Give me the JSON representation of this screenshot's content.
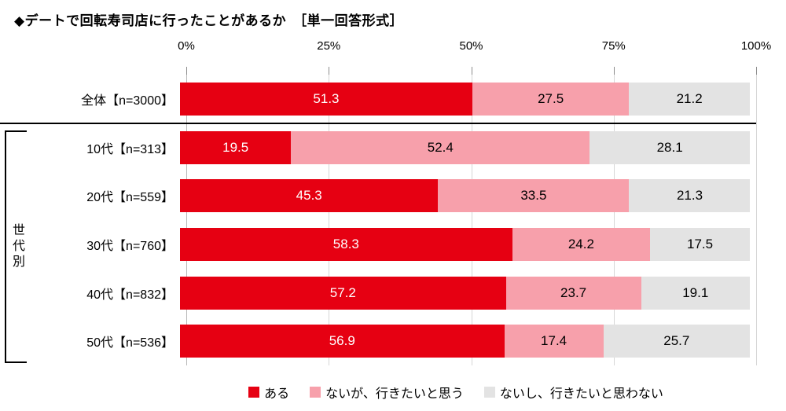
{
  "title": "◆デートで回転寿司店に行ったことがあるか　［単一回答形式］",
  "axis": {
    "ticks": [
      "0%",
      "25%",
      "50%",
      "75%",
      "100%"
    ]
  },
  "group_label": "世代別",
  "chart_data": {
    "type": "bar",
    "stacked": true,
    "orientation": "horizontal",
    "title": "デートで回転寿司店に行ったことがあるか（単一回答形式）",
    "xlim": [
      0,
      100
    ],
    "grid": true,
    "legend_position": "bottom",
    "categories": [
      "全体【n=3000】",
      "10代【n=313】",
      "20代【n=559】",
      "30代【n=760】",
      "40代【n=832】",
      "50代【n=536】"
    ],
    "series": [
      {
        "name": "ある",
        "color": "#e60012",
        "label_color": "#ffffff",
        "values": [
          51.3,
          19.5,
          45.3,
          58.3,
          57.2,
          56.9
        ]
      },
      {
        "name": "ないが、行きたいと思う",
        "color": "#f7a0ab",
        "label_color": "#000000",
        "values": [
          27.5,
          52.4,
          33.5,
          24.2,
          23.7,
          17.4
        ]
      },
      {
        "name": "ないし、行きたいと思わない",
        "color": "#e3e3e3",
        "label_color": "#000000",
        "values": [
          21.2,
          28.1,
          21.3,
          17.5,
          19.1,
          25.7
        ]
      }
    ]
  }
}
